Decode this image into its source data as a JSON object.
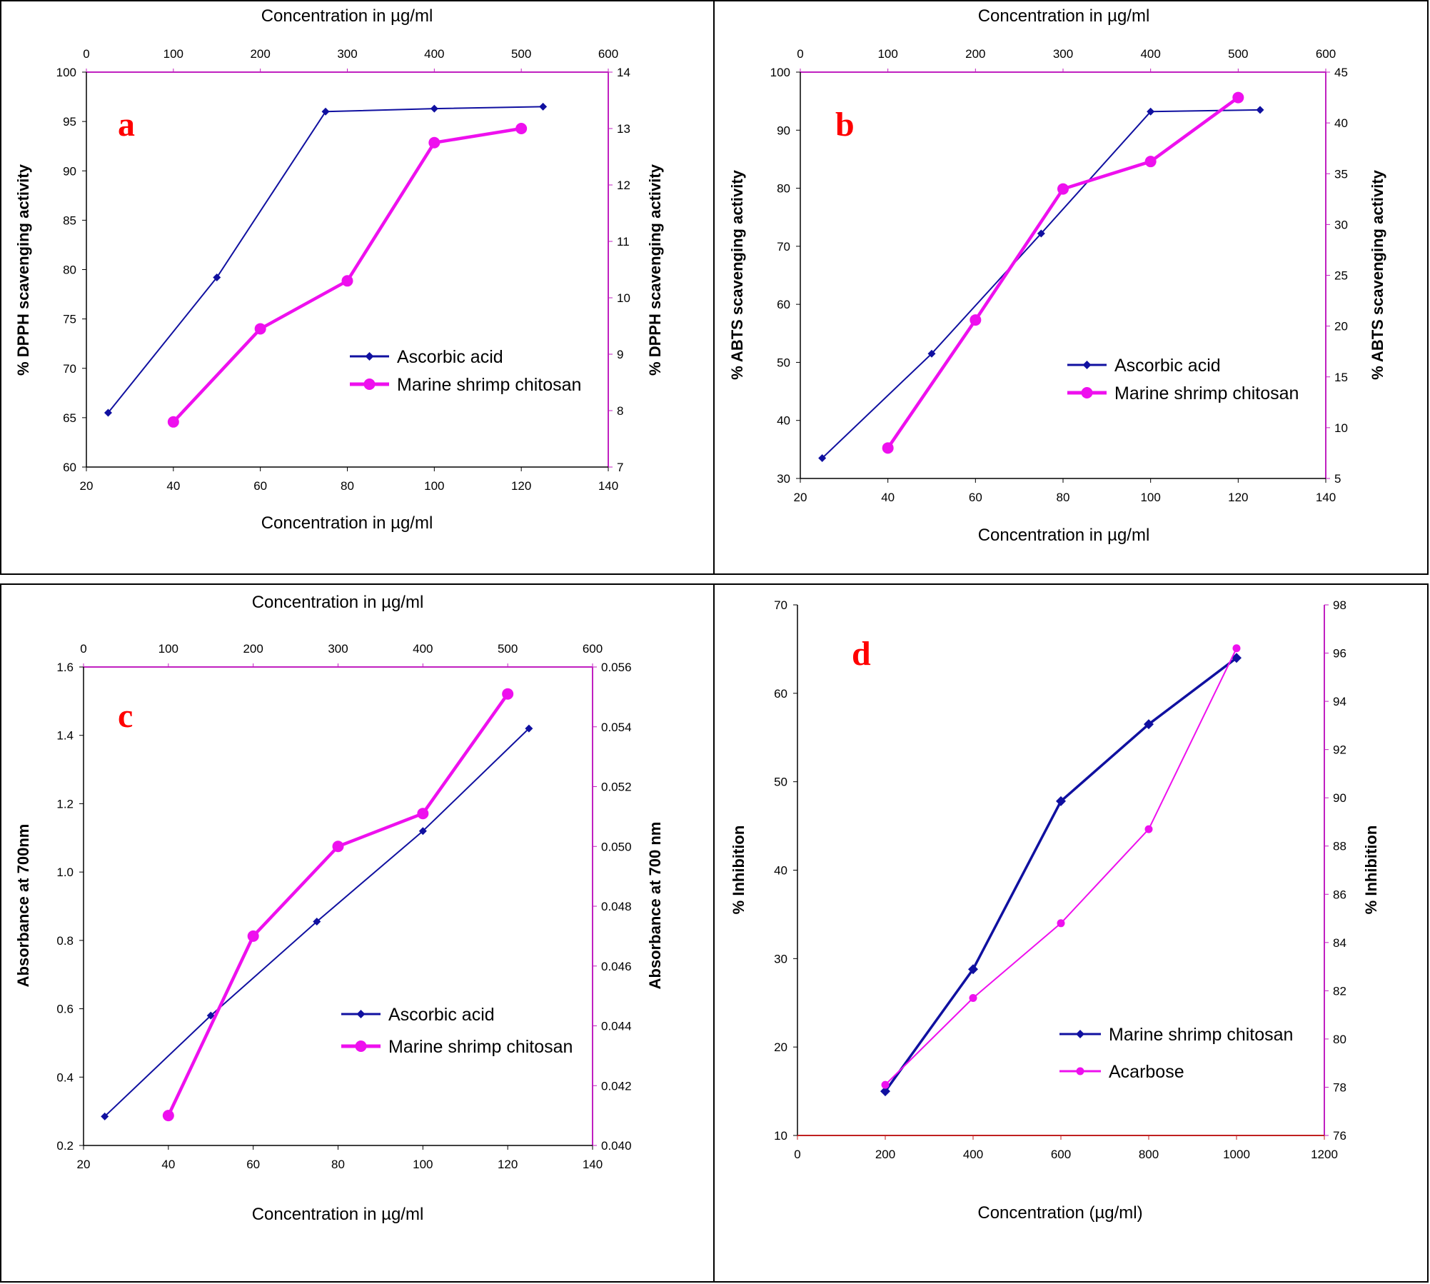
{
  "colors": {
    "ascorbic": "#1010a0",
    "chitosan": "#ee10ee",
    "axis_pink": "#c020c0",
    "axis_red": "#c02020",
    "axis_blue_tick": "#3030a0",
    "panel_letter": "#ff0000"
  },
  "chart_data": [
    {
      "panel": "a",
      "type": "line",
      "bottom_axis": {
        "label": "Concentration in µg/ml",
        "range": [
          20,
          140
        ],
        "ticks": [
          "20",
          "40",
          "60",
          "80",
          "100",
          "120",
          "140"
        ]
      },
      "top_axis": {
        "label": "Concentration in µg/ml",
        "range": [
          0,
          600
        ],
        "ticks": [
          "0",
          "100",
          "200",
          "300",
          "400",
          "500",
          "600"
        ]
      },
      "left_axis": {
        "label": "% DPPH scavenging activity",
        "range": [
          60,
          100
        ],
        "ticks": [
          "60",
          "65",
          "70",
          "75",
          "80",
          "85",
          "90",
          "95",
          "100"
        ]
      },
      "right_axis": {
        "label": "% DPPH scavenging activity",
        "range": [
          7,
          14
        ],
        "ticks": [
          "7",
          "8",
          "9",
          "10",
          "11",
          "12",
          "13",
          "14"
        ]
      },
      "series": [
        {
          "name": "Ascorbic acid",
          "xaxis": "bottom",
          "yaxis": "left",
          "x": [
            25,
            50,
            75,
            100,
            125
          ],
          "y": [
            65.5,
            79.2,
            96.0,
            96.3,
            96.5
          ]
        },
        {
          "name": "Marine shrimp chitosan",
          "xaxis": "top",
          "yaxis": "right",
          "x": [
            100,
            200,
            300,
            400,
            500
          ],
          "y": [
            7.8,
            9.45,
            10.3,
            12.75,
            13.0
          ]
        }
      ],
      "legend": [
        "Ascorbic acid",
        "Marine shrimp chitosan"
      ]
    },
    {
      "panel": "b",
      "type": "line",
      "bottom_axis": {
        "label": "Concentration in µg/ml",
        "range": [
          20,
          140
        ],
        "ticks": [
          "20",
          "40",
          "60",
          "80",
          "100",
          "120",
          "140"
        ]
      },
      "top_axis": {
        "label": "Concentration in µg/ml",
        "range": [
          0,
          600
        ],
        "ticks": [
          "0",
          "100",
          "200",
          "300",
          "400",
          "500",
          "600"
        ]
      },
      "left_axis": {
        "label": "% ABTS scavenging activity",
        "range": [
          30,
          100
        ],
        "ticks": [
          "30",
          "40",
          "50",
          "60",
          "70",
          "80",
          "90",
          "100"
        ]
      },
      "right_axis": {
        "label": "% ABTS scavenging activity",
        "range": [
          5,
          45
        ],
        "ticks": [
          "5",
          "10",
          "15",
          "20",
          "25",
          "30",
          "35",
          "40",
          "45"
        ]
      },
      "series": [
        {
          "name": "Ascorbic acid",
          "xaxis": "bottom",
          "yaxis": "left",
          "x": [
            25,
            50,
            75,
            100,
            125
          ],
          "y": [
            33.5,
            51.5,
            72.2,
            93.2,
            93.5
          ]
        },
        {
          "name": "Marine shrimp chitosan",
          "xaxis": "top",
          "yaxis": "right",
          "x": [
            100,
            200,
            300,
            400,
            500
          ],
          "y": [
            8.0,
            20.6,
            33.5,
            36.2,
            42.5
          ]
        }
      ],
      "legend": [
        "Ascorbic acid",
        "Marine shrimp chitosan"
      ]
    },
    {
      "panel": "c",
      "type": "line",
      "bottom_axis": {
        "label": "Concentration in µg/ml",
        "range": [
          20,
          140
        ],
        "ticks": [
          "20",
          "40",
          "60",
          "80",
          "100",
          "120",
          "140"
        ]
      },
      "top_axis": {
        "label": "Concentration in µg/ml",
        "range": [
          0,
          600
        ],
        "ticks": [
          "0",
          "100",
          "200",
          "300",
          "400",
          "500",
          "600"
        ]
      },
      "left_axis": {
        "label": "Absorbance at 700nm",
        "range": [
          0.2,
          1.6
        ],
        "ticks": [
          "0.2",
          "0.4",
          "0.6",
          "0.8",
          "1.0",
          "1.2",
          "1.4",
          "1.6"
        ]
      },
      "right_axis": {
        "label": "Absorbance at 700 nm",
        "range": [
          0.04,
          0.056
        ],
        "ticks": [
          "0.040",
          "0.042",
          "0.044",
          "0.046",
          "0.048",
          "0.050",
          "0.052",
          "0.054",
          "0.056"
        ]
      },
      "series": [
        {
          "name": "Ascorbic acid",
          "xaxis": "bottom",
          "yaxis": "left",
          "x": [
            25,
            50,
            75,
            100,
            125
          ],
          "y": [
            0.285,
            0.58,
            0.855,
            1.12,
            1.42
          ]
        },
        {
          "name": "Marine shrimp chitosan",
          "xaxis": "top",
          "yaxis": "right",
          "x": [
            100,
            200,
            300,
            400,
            500
          ],
          "y": [
            0.041,
            0.047,
            0.05,
            0.0511,
            0.0551
          ]
        }
      ],
      "legend": [
        "Ascorbic acid",
        "Marine shrimp chitosan"
      ]
    },
    {
      "panel": "d",
      "type": "line",
      "bottom_axis": {
        "label": "Concentration (µg/ml)",
        "range": [
          0,
          1200
        ],
        "ticks": [
          "0",
          "200",
          "400",
          "600",
          "800",
          "1000",
          "1200"
        ]
      },
      "left_axis": {
        "label": "% Inhibition",
        "range": [
          10,
          70
        ],
        "ticks": [
          "10",
          "20",
          "30",
          "40",
          "50",
          "60",
          "70"
        ]
      },
      "right_axis": {
        "label": "% Inhibition",
        "range": [
          76,
          98
        ],
        "ticks": [
          "76",
          "78",
          "80",
          "82",
          "84",
          "86",
          "88",
          "90",
          "92",
          "94",
          "96",
          "98"
        ]
      },
      "series": [
        {
          "name": "Marine shrimp chitosan",
          "xaxis": "bottom",
          "yaxis": "left",
          "x": [
            200,
            400,
            600,
            800,
            1000
          ],
          "y": [
            15.0,
            28.8,
            47.8,
            56.5,
            64.0
          ]
        },
        {
          "name": "Acarbose",
          "xaxis": "bottom",
          "yaxis": "right",
          "x": [
            200,
            400,
            600,
            800,
            1000
          ],
          "y": [
            78.1,
            81.7,
            84.8,
            88.7,
            96.2
          ]
        }
      ],
      "legend": [
        "Marine shrimp chitosan",
        "Acarbose"
      ]
    }
  ]
}
